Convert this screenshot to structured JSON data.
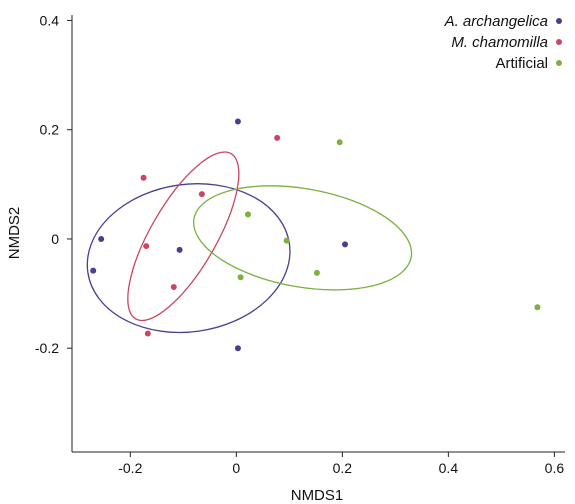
{
  "chart_data": {
    "type": "scatter",
    "title": "",
    "xlabel": "NMDS1",
    "ylabel": "NMDS2",
    "xlim": [
      -0.31,
      0.62
    ],
    "ylim": [
      -0.39,
      0.41
    ],
    "x_ticks": [
      -0.2,
      0,
      0.2,
      0.4,
      0.6
    ],
    "x_tick_labels": [
      "-0.2",
      "0",
      "0.2",
      "0.4",
      "0.6"
    ],
    "y_ticks": [
      -0.2,
      0,
      0.2,
      0.4
    ],
    "y_tick_labels": [
      "-0.2",
      "0",
      "0.2",
      "0.4"
    ],
    "grid": false,
    "legend_position": "top-right",
    "series": [
      {
        "name": "A. archangelica",
        "italic": true,
        "color": "#4a3f8f",
        "points": [
          {
            "x": 0.003,
            "y": 0.215
          },
          {
            "x": -0.255,
            "y": 0.0
          },
          {
            "x": -0.27,
            "y": -0.058
          },
          {
            "x": -0.107,
            "y": -0.02
          },
          {
            "x": 0.205,
            "y": -0.01
          },
          {
            "x": 0.003,
            "y": -0.2
          }
        ],
        "ellipse": {
          "cx": -0.09,
          "cy": -0.035,
          "rx": 0.192,
          "ry": 0.135,
          "rotation_deg": -8
        }
      },
      {
        "name": "M. chamomilla",
        "italic": true,
        "color": "#cc4560",
        "points": [
          {
            "x": 0.077,
            "y": 0.185
          },
          {
            "x": -0.175,
            "y": 0.112
          },
          {
            "x": -0.065,
            "y": 0.082
          },
          {
            "x": -0.17,
            "y": -0.013
          },
          {
            "x": -0.118,
            "y": -0.088
          },
          {
            "x": -0.167,
            "y": -0.173
          }
        ],
        "ellipse": {
          "cx": -0.1,
          "cy": 0.005,
          "rx": 0.18,
          "ry": 0.06,
          "rotation_deg": -60
        }
      },
      {
        "name": "Artificial",
        "italic": false,
        "color": "#7ab140",
        "points": [
          {
            "x": 0.195,
            "y": 0.177
          },
          {
            "x": 0.022,
            "y": 0.045
          },
          {
            "x": 0.095,
            "y": -0.003
          },
          {
            "x": 0.008,
            "y": -0.07
          },
          {
            "x": 0.152,
            "y": -0.062
          },
          {
            "x": 0.568,
            "y": -0.125
          }
        ],
        "ellipse": {
          "cx": 0.125,
          "cy": 0.002,
          "rx": 0.208,
          "ry": 0.09,
          "rotation_deg": 10
        }
      }
    ]
  }
}
